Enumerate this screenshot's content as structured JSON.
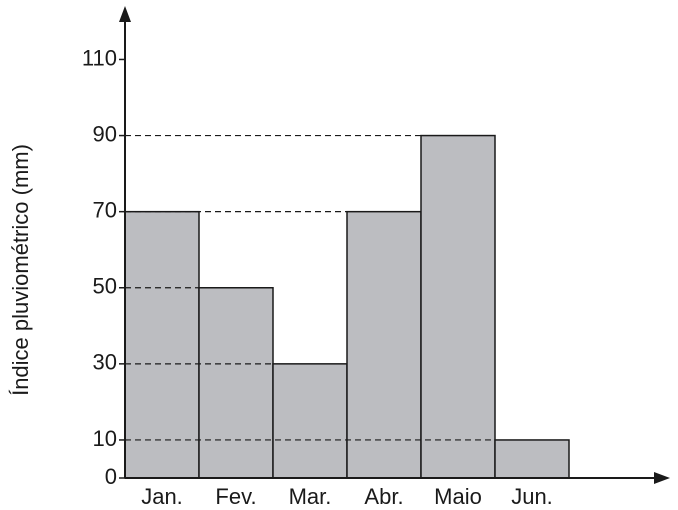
{
  "chart_data": {
    "type": "bar",
    "y_label": "Índice pluviométrico (mm)",
    "categories": [
      "Jan.",
      "Fev.",
      "Mar.",
      "Abr.",
      "Maio",
      "Jun."
    ],
    "values": [
      70,
      50,
      30,
      70,
      90,
      10
    ],
    "color": "#bcbdc1",
    "ylim": [
      0,
      123
    ],
    "yticks": [
      0,
      10,
      30,
      50,
      70,
      90,
      110
    ],
    "grid": false
  }
}
